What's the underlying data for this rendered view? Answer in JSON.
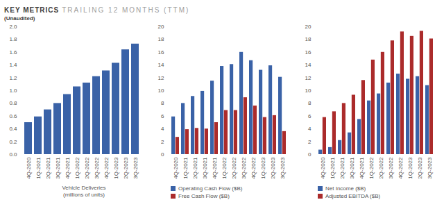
{
  "title": "KEY METRICS",
  "subtitle": "TRAILING 12 MONTHS (TTM)",
  "note": "(Unaudited)",
  "chart_data": [
    {
      "type": "bar",
      "x_label": "Vehicle Deliveries (millions of units)",
      "categories": [
        "4Q-2020",
        "1Q-2021",
        "2Q-2021",
        "3Q-2021",
        "4Q-2021",
        "1Q-2022",
        "2Q-2022",
        "3Q-2022",
        "4Q-2022",
        "1Q-2023",
        "2Q-2023",
        "3Q-2023"
      ],
      "values": [
        0.5,
        0.59,
        0.7,
        0.8,
        0.94,
        1.06,
        1.12,
        1.22,
        1.31,
        1.43,
        1.64,
        1.73
      ],
      "color": "#3a62a7",
      "ylim": [
        0,
        2
      ],
      "yticks": [
        {
          "value": 0,
          "label": "0.0"
        },
        {
          "value": 0.2,
          "label": "0.2"
        },
        {
          "value": 0.4,
          "label": "0.4"
        },
        {
          "value": 0.6,
          "label": "0.6"
        },
        {
          "value": 0.8,
          "label": "0.8"
        },
        {
          "value": 1,
          "label": "1.0"
        },
        {
          "value": 1.2,
          "label": "1.2"
        },
        {
          "value": 1.4,
          "label": "1.4"
        },
        {
          "value": 1.6,
          "label": "1.6"
        },
        {
          "value": 1.8,
          "label": "1.8"
        },
        {
          "value": 2,
          "label": "2.0"
        }
      ],
      "grid": false
    },
    {
      "type": "bar",
      "categories": [
        "4Q-2020",
        "1Q-2021",
        "2Q-2021",
        "3Q-2021",
        "4Q-2021",
        "1Q-2022",
        "2Q-2022",
        "3Q-2022",
        "4Q-2022",
        "1Q-2023",
        "2Q-2023",
        "3Q-2023"
      ],
      "series": [
        {
          "name": "Operating Cash Flow ($B)",
          "color": "#3a62a7",
          "values": [
            5.9,
            8.0,
            9.1,
            9.9,
            11.5,
            13.8,
            14.1,
            16.0,
            14.7,
            13.2,
            13.9,
            12.1
          ]
        },
        {
          "name": "Free Cash Flow ($B)",
          "color": "#ab2b2b",
          "values": [
            2.7,
            3.9,
            4.1,
            4.0,
            5.0,
            6.9,
            6.9,
            8.9,
            7.6,
            5.8,
            6.1,
            3.6
          ]
        }
      ],
      "ylim": [
        0,
        20
      ],
      "yticks": [
        0,
        2,
        4,
        6,
        8,
        10,
        12,
        14,
        16,
        18,
        20
      ],
      "grid": false,
      "legend": "bottom"
    },
    {
      "type": "bar",
      "categories": [
        "4Q-2020",
        "1Q-2021",
        "2Q-2021",
        "3Q-2021",
        "4Q-2021",
        "1Q-2022",
        "2Q-2022",
        "3Q-2022",
        "4Q-2022",
        "1Q-2023",
        "2Q-2023",
        "3Q-2023"
      ],
      "series": [
        {
          "name": "Net Income ($B)",
          "color": "#3a62a7",
          "values": [
            0.7,
            1.1,
            2.2,
            3.4,
            5.5,
            8.4,
            9.5,
            11.2,
            12.6,
            11.8,
            12.2,
            10.8
          ]
        },
        {
          "name": "Adjusted EBITDA ($B)",
          "color": "#ab2b2b",
          "values": [
            5.8,
            6.7,
            8.0,
            9.3,
            11.6,
            14.8,
            16.0,
            17.8,
            19.2,
            18.5,
            19.3,
            18.1
          ]
        }
      ],
      "ylim": [
        0,
        20
      ],
      "yticks": [
        0,
        2,
        4,
        6,
        8,
        10,
        12,
        14,
        16,
        18,
        20
      ],
      "grid": false,
      "legend": "bottom"
    }
  ]
}
